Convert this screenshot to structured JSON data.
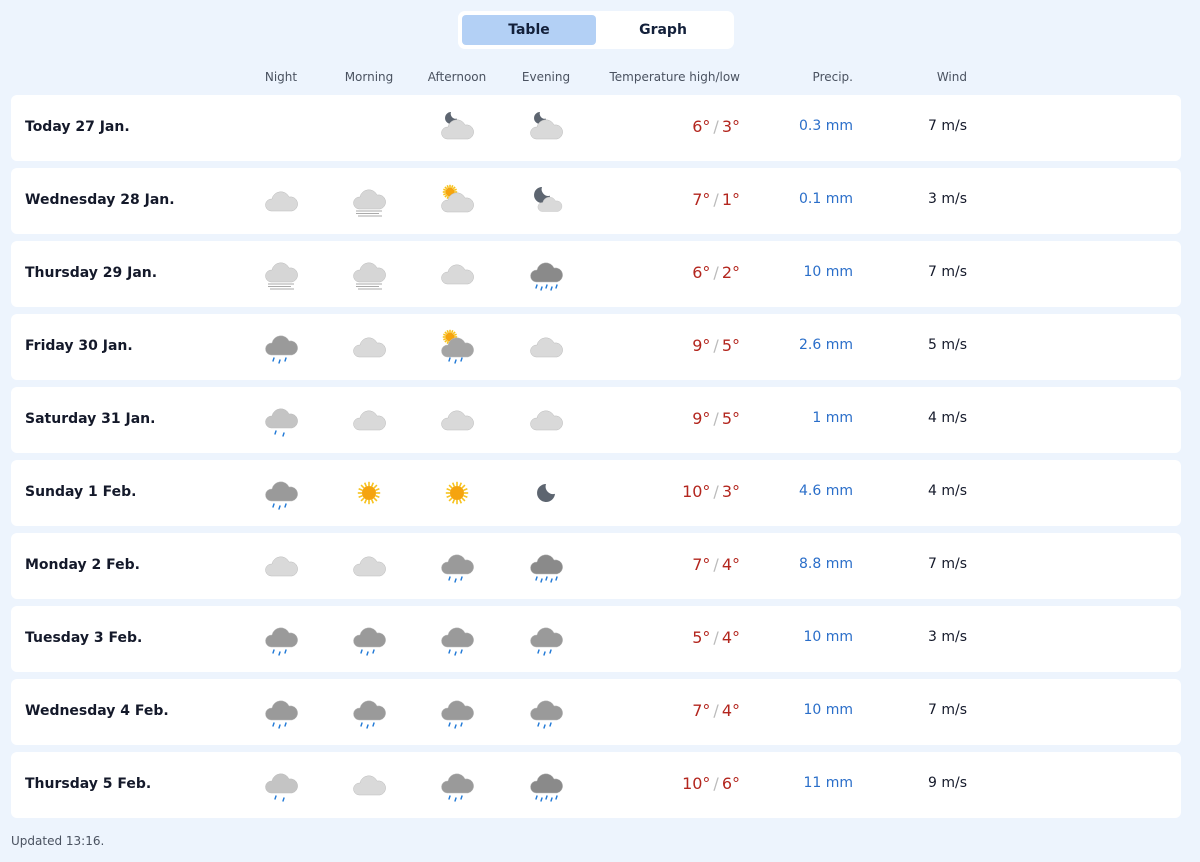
{
  "view_toggle": {
    "options": [
      "Table",
      "Graph"
    ],
    "active": "Table"
  },
  "headers": {
    "night": "Night",
    "morning": "Morning",
    "afternoon": "Afternoon",
    "evening": "Evening",
    "temperature": "Temperature high/low",
    "precip": "Precip.",
    "wind": "Wind"
  },
  "colors": {
    "background": "#edf4fd",
    "active_tab": "#b3d0f5",
    "temperature": "#b3261e",
    "precip": "#2a6ec9"
  },
  "rows": [
    {
      "day": "Today 27 Jan.",
      "icons": [
        "",
        "",
        "cloud-moon",
        "cloud-moon"
      ],
      "high": "6°",
      "low": "3°",
      "precip": "0.3 mm",
      "wind": "7 m/s"
    },
    {
      "day": "Wednesday 28 Jan.",
      "icons": [
        "cloud",
        "fog",
        "cloud-sun",
        "moon-small-cloud"
      ],
      "high": "7°",
      "low": "1°",
      "precip": "0.1 mm",
      "wind": "3 m/s"
    },
    {
      "day": "Thursday 29 Jan.",
      "icons": [
        "fog",
        "fog",
        "cloud",
        "heavy-rain"
      ],
      "high": "6°",
      "low": "2°",
      "precip": "10 mm",
      "wind": "7 m/s"
    },
    {
      "day": "Friday 30 Jan.",
      "icons": [
        "rain",
        "cloud",
        "sun-cloud-rain",
        "cloud"
      ],
      "high": "9°",
      "low": "5°",
      "precip": "2.6 mm",
      "wind": "5 m/s"
    },
    {
      "day": "Saturday 31 Jan.",
      "icons": [
        "light-rain",
        "cloud",
        "cloud",
        "cloud"
      ],
      "high": "9°",
      "low": "5°",
      "precip": "1 mm",
      "wind": "4 m/s"
    },
    {
      "day": "Sunday 1 Feb.",
      "icons": [
        "rain",
        "sun",
        "sun",
        "moon"
      ],
      "high": "10°",
      "low": "3°",
      "precip": "4.6 mm",
      "wind": "4 m/s"
    },
    {
      "day": "Monday 2 Feb.",
      "icons": [
        "cloud",
        "cloud",
        "rain",
        "heavy-rain"
      ],
      "high": "7°",
      "low": "4°",
      "precip": "8.8 mm",
      "wind": "7 m/s"
    },
    {
      "day": "Tuesday 3 Feb.",
      "icons": [
        "rain",
        "rain",
        "rain",
        "rain"
      ],
      "high": "5°",
      "low": "4°",
      "precip": "10 mm",
      "wind": "3 m/s"
    },
    {
      "day": "Wednesday 4 Feb.",
      "icons": [
        "rain",
        "rain",
        "rain",
        "rain"
      ],
      "high": "7°",
      "low": "4°",
      "precip": "10 mm",
      "wind": "7 m/s"
    },
    {
      "day": "Thursday 5 Feb.",
      "icons": [
        "light-rain",
        "cloud",
        "rain",
        "heavy-rain"
      ],
      "high": "10°",
      "low": "6°",
      "precip": "11 mm",
      "wind": "9 m/s"
    }
  ],
  "footer": {
    "updated": "Updated 13:16."
  }
}
